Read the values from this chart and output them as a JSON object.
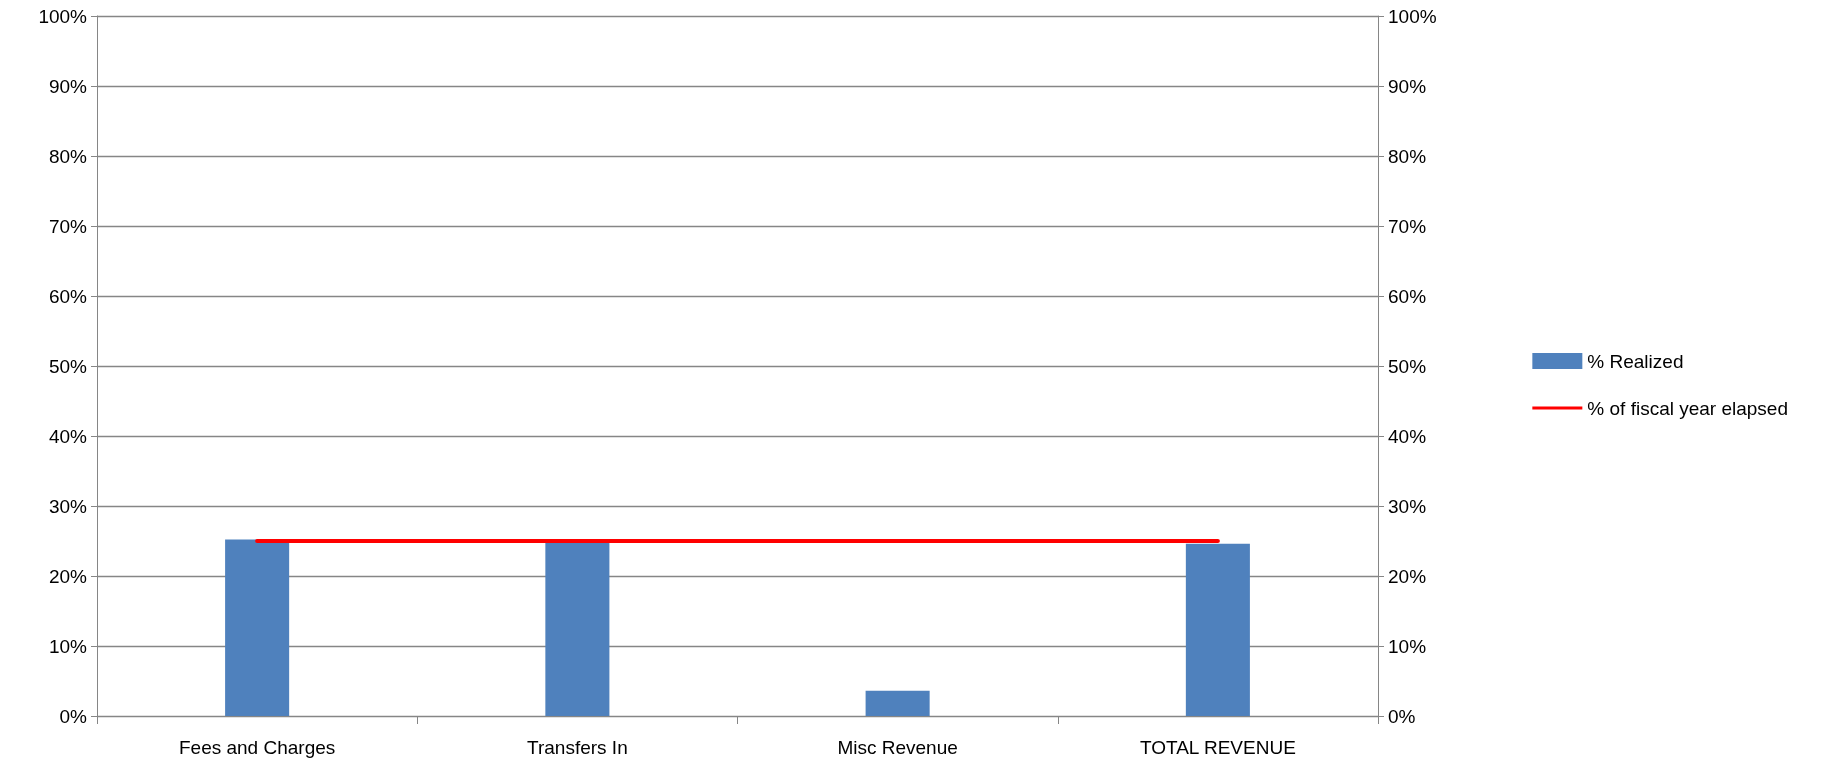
{
  "chart_data": {
    "type": "bar",
    "categories": [
      "Fees and Charges",
      "Transfers In",
      "Misc Revenue",
      "TOTAL REVENUE"
    ],
    "series": [
      {
        "name": "% Realized",
        "color": "#4f81bd",
        "values": [
          25.2,
          24.7,
          3.6,
          24.6
        ]
      },
      {
        "name": "% of fiscal year elapsed",
        "type": "line",
        "color": "#ff0000",
        "marker": "none",
        "values": [
          25,
          25,
          25,
          25
        ]
      }
    ],
    "ylim": [
      0,
      100
    ],
    "yticks": [
      {
        "value": 0,
        "label": "0%"
      },
      {
        "value": 10,
        "label": "10%"
      },
      {
        "value": 20,
        "label": "20%"
      },
      {
        "value": 30,
        "label": "30%"
      },
      {
        "value": 40,
        "label": "40%"
      },
      {
        "value": 50,
        "label": "50%"
      },
      {
        "value": 60,
        "label": "60%"
      },
      {
        "value": 70,
        "label": "70%"
      },
      {
        "value": 80,
        "label": "80%"
      },
      {
        "value": 90,
        "label": "90%"
      },
      {
        "value": 100,
        "label": "100%"
      }
    ],
    "y2lim": [
      0,
      100
    ],
    "y2ticks": [
      {
        "value": 0,
        "label": "0%"
      },
      {
        "value": 10,
        "label": "10%"
      },
      {
        "value": 20,
        "label": "20%"
      },
      {
        "value": 30,
        "label": "30%"
      },
      {
        "value": 40,
        "label": "40%"
      },
      {
        "value": 50,
        "label": "50%"
      },
      {
        "value": 60,
        "label": "60%"
      },
      {
        "value": 70,
        "label": "70%"
      },
      {
        "value": 80,
        "label": "80%"
      },
      {
        "value": 90,
        "label": "90%"
      },
      {
        "value": 100,
        "label": "100%"
      }
    ],
    "grid": "y",
    "legend": "right"
  }
}
